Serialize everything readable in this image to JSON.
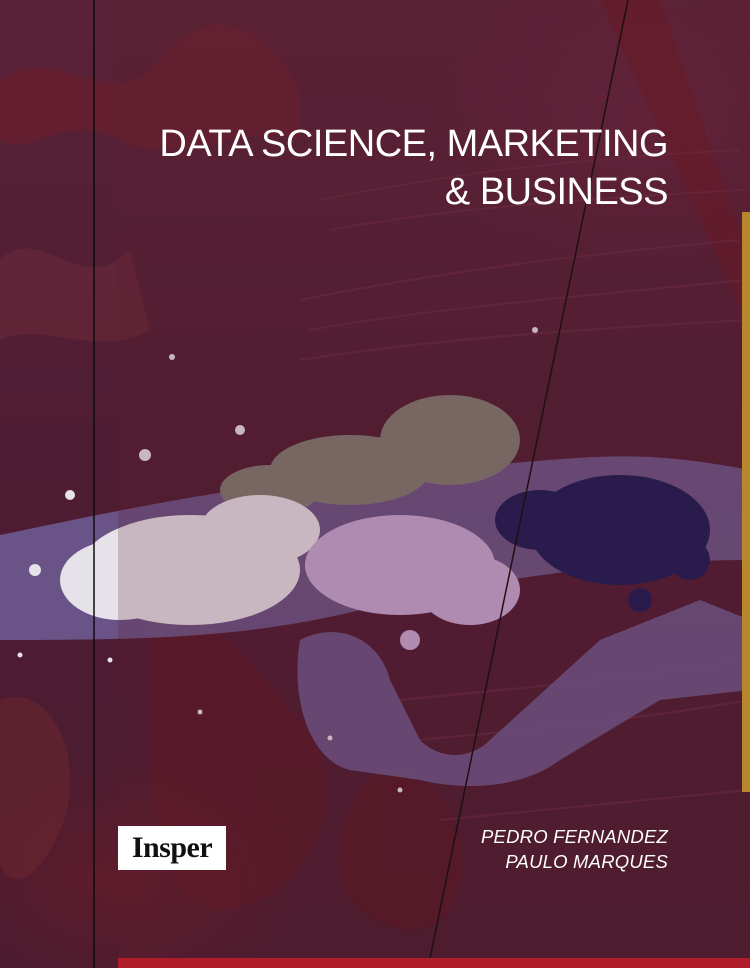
{
  "book": {
    "title_lines": [
      "DATA SCIENCE, MARKETING",
      "& BUSINESS"
    ],
    "publisher_logo": "Insper",
    "authors": [
      "PEDRO  FERNANDEZ",
      "PAULO MARQUES"
    ]
  },
  "colors": {
    "background": "#4f1d33",
    "brush_stroke": "#6e5a8f",
    "white_splatter": "#e6e2ea",
    "lavender_splatter": "#c7a9d6",
    "gray_splatter": "#7f7a72",
    "navy_splatter": "#1a1c55",
    "gold_accent": "#b8862b",
    "red_accent": "#b01c2a"
  }
}
